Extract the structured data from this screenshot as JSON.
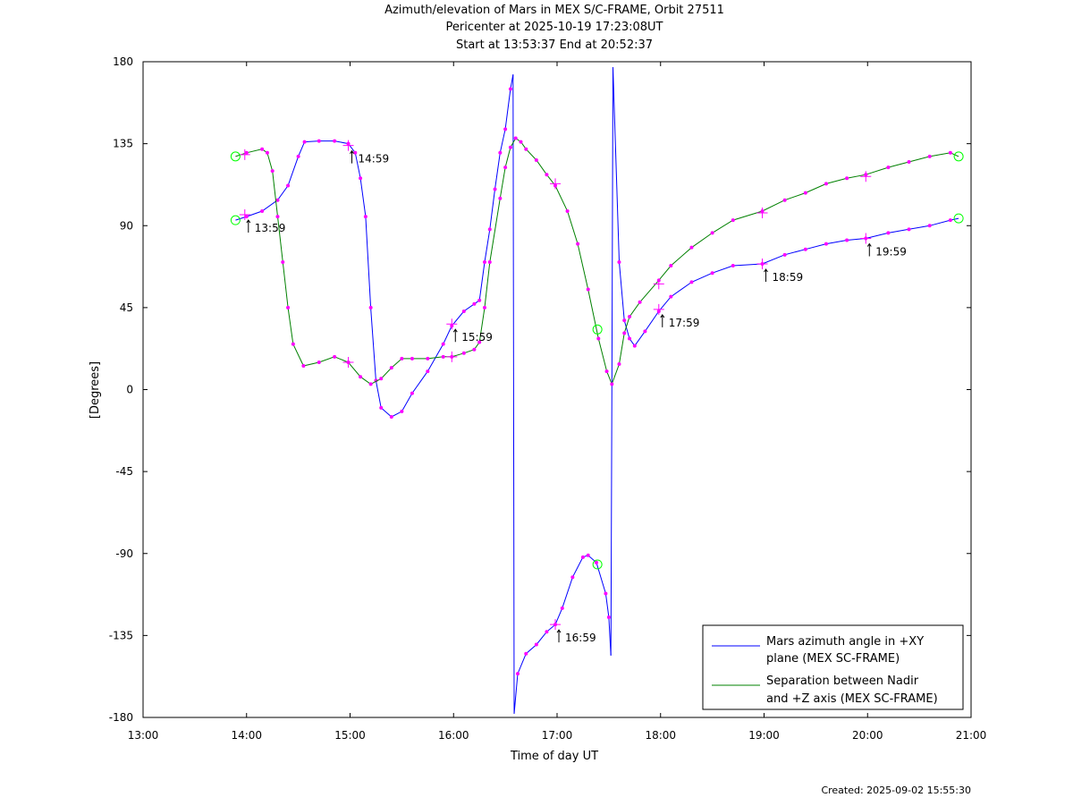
{
  "title_lines": [
    "Azimuth/elevation of Mars in MEX S/C-FRAME,  Orbit 27511",
    "Pericenter at 2025-10-19 17:23:08UT",
    "Start at 13:53:37 End at 20:52:37"
  ],
  "created": "Created: 2025-09-02 15:55:30",
  "chart_data": {
    "type": "line",
    "xlabel": "Time of day UT",
    "ylabel": "[Degrees]",
    "xlim": [
      13.0,
      21.0
    ],
    "ylim": [
      -180,
      180
    ],
    "x_ticks": [
      "13:00",
      "14:00",
      "15:00",
      "16:00",
      "17:00",
      "18:00",
      "19:00",
      "20:00",
      "21:00"
    ],
    "y_ticks": [
      "180",
      "135",
      "90",
      "45",
      "0",
      "-45",
      "-90",
      "-135",
      "-180"
    ],
    "legend_placement": "bottom-right",
    "colors": {
      "azimuth": "#0000ff",
      "separation": "#008000",
      "markers": "#ff00ff",
      "endpoints": "#00ff00",
      "axes": "#000000"
    },
    "series": [
      {
        "name": "Mars azimuth angle in +XY plane (MEX SC-FRAME)",
        "legend_lines": [
          "Mars azimuth angle in +XY",
          "plane (MEX SC-FRAME)"
        ],
        "color": "#0000ff",
        "segments": [
          [
            [
              13.893,
              93
            ],
            [
              14.0,
              95
            ],
            [
              14.15,
              98
            ],
            [
              14.3,
              104
            ],
            [
              14.4,
              112
            ],
            [
              14.5,
              128
            ],
            [
              14.56,
              136
            ],
            [
              14.7,
              136.5
            ],
            [
              14.85,
              136.5
            ],
            [
              14.983,
              135
            ],
            [
              15.05,
              130
            ],
            [
              15.1,
              116
            ],
            [
              15.15,
              95
            ],
            [
              15.2,
              45
            ],
            [
              15.25,
              5
            ],
            [
              15.3,
              -10
            ],
            [
              15.4,
              -15
            ],
            [
              15.5,
              -12
            ],
            [
              15.6,
              -2
            ],
            [
              15.75,
              10
            ],
            [
              15.9,
              25
            ],
            [
              15.983,
              35
            ],
            [
              16.1,
              43
            ],
            [
              16.2,
              47
            ],
            [
              16.25,
              49
            ],
            [
              16.3,
              70
            ],
            [
              16.35,
              88
            ],
            [
              16.4,
              110
            ],
            [
              16.45,
              130
            ],
            [
              16.5,
              143
            ],
            [
              16.55,
              165
            ],
            [
              16.575,
              173
            ]
          ],
          [
            [
              16.575,
              173
            ],
            [
              16.58,
              0
            ],
            [
              16.585,
              -178
            ]
          ],
          [
            [
              16.585,
              -178
            ],
            [
              16.62,
              -156
            ],
            [
              16.7,
              -145
            ],
            [
              16.8,
              -140
            ],
            [
              16.9,
              -133
            ],
            [
              16.983,
              -129
            ],
            [
              17.05,
              -120
            ],
            [
              17.15,
              -103
            ],
            [
              17.25,
              -92
            ],
            [
              17.3,
              -91
            ],
            [
              17.38,
              -95
            ],
            [
              17.47,
              -112
            ],
            [
              17.5,
              -125
            ],
            [
              17.52,
              -146
            ]
          ],
          [
            [
              17.52,
              -146
            ],
            [
              17.53,
              0
            ],
            [
              17.54,
              177
            ]
          ],
          [
            [
              17.54,
              177
            ],
            [
              17.6,
              70
            ],
            [
              17.65,
              38
            ],
            [
              17.7,
              28
            ],
            [
              17.75,
              24
            ],
            [
              17.85,
              32
            ],
            [
              17.983,
              43
            ],
            [
              18.1,
              51
            ],
            [
              18.3,
              59
            ],
            [
              18.5,
              64
            ],
            [
              18.7,
              68
            ],
            [
              18.983,
              69
            ],
            [
              19.2,
              74
            ],
            [
              19.4,
              77
            ],
            [
              19.6,
              80
            ],
            [
              19.8,
              82
            ],
            [
              19.983,
              83
            ],
            [
              20.2,
              86
            ],
            [
              20.4,
              88
            ],
            [
              20.6,
              90
            ],
            [
              20.8,
              93
            ],
            [
              20.88,
              94
            ]
          ]
        ],
        "hour_marks": [
          [
            13.983,
            96
          ],
          [
            14.983,
            134
          ],
          [
            15.983,
            36
          ],
          [
            16.983,
            -129
          ],
          [
            17.983,
            44
          ],
          [
            18.983,
            69
          ],
          [
            19.983,
            83
          ]
        ],
        "hour_labels": [
          "13:59",
          "14:59",
          "15:59",
          "16:59",
          "17:59",
          "18:59",
          "19:59"
        ],
        "endpoints": [
          [
            13.893,
            93
          ],
          [
            20.88,
            94
          ]
        ]
      },
      {
        "name": "Separation between Nadir and +Z axis (MEX SC-FRAME)",
        "legend_lines": [
          "Separation between Nadir",
          "and +Z axis (MEX SC-FRAME)"
        ],
        "color": "#008000",
        "segments": [
          [
            [
              13.893,
              128
            ],
            [
              14.0,
              130
            ],
            [
              14.15,
              132
            ],
            [
              14.2,
              130
            ],
            [
              14.25,
              120
            ],
            [
              14.3,
              95
            ],
            [
              14.35,
              70
            ],
            [
              14.4,
              45
            ],
            [
              14.45,
              25
            ],
            [
              14.55,
              13
            ],
            [
              14.7,
              15
            ],
            [
              14.85,
              18
            ],
            [
              14.983,
              15
            ],
            [
              15.1,
              7
            ],
            [
              15.2,
              3
            ],
            [
              15.3,
              6
            ],
            [
              15.4,
              12
            ],
            [
              15.5,
              17
            ],
            [
              15.6,
              17
            ],
            [
              15.75,
              17
            ],
            [
              15.9,
              18
            ],
            [
              15.983,
              18
            ],
            [
              16.1,
              20
            ],
            [
              16.2,
              22
            ],
            [
              16.25,
              26
            ],
            [
              16.3,
              45
            ],
            [
              16.35,
              70
            ],
            [
              16.45,
              105
            ],
            [
              16.5,
              122
            ],
            [
              16.55,
              133
            ],
            [
              16.6,
              138
            ],
            [
              16.65,
              136
            ],
            [
              16.7,
              132
            ],
            [
              16.8,
              126
            ],
            [
              16.9,
              118
            ],
            [
              16.983,
              112
            ],
            [
              17.1,
              98
            ],
            [
              17.2,
              80
            ],
            [
              17.3,
              55
            ],
            [
              17.4,
              28
            ],
            [
              17.48,
              10
            ],
            [
              17.53,
              3
            ],
            [
              17.6,
              14
            ],
            [
              17.65,
              31
            ],
            [
              17.7,
              40
            ],
            [
              17.8,
              48
            ],
            [
              17.983,
              60
            ],
            [
              18.1,
              68
            ],
            [
              18.3,
              78
            ],
            [
              18.5,
              86
            ],
            [
              18.7,
              93
            ],
            [
              18.983,
              98
            ],
            [
              19.2,
              104
            ],
            [
              19.4,
              108
            ],
            [
              19.6,
              113
            ],
            [
              19.8,
              116
            ],
            [
              19.983,
              118
            ],
            [
              20.2,
              122
            ],
            [
              20.4,
              125
            ],
            [
              20.6,
              128
            ],
            [
              20.8,
              130
            ],
            [
              20.88,
              128
            ]
          ]
        ],
        "hour_marks": [
          [
            13.983,
            129
          ],
          [
            14.983,
            15
          ],
          [
            15.983,
            18
          ],
          [
            16.983,
            113
          ],
          [
            17.983,
            58
          ],
          [
            18.983,
            97
          ],
          [
            19.983,
            117
          ]
        ],
        "endpoints": [
          [
            13.893,
            128
          ],
          [
            20.88,
            128
          ]
        ]
      }
    ],
    "pericenter_markers": [
      [
        17.39,
        33
      ],
      [
        17.39,
        -96
      ]
    ]
  }
}
